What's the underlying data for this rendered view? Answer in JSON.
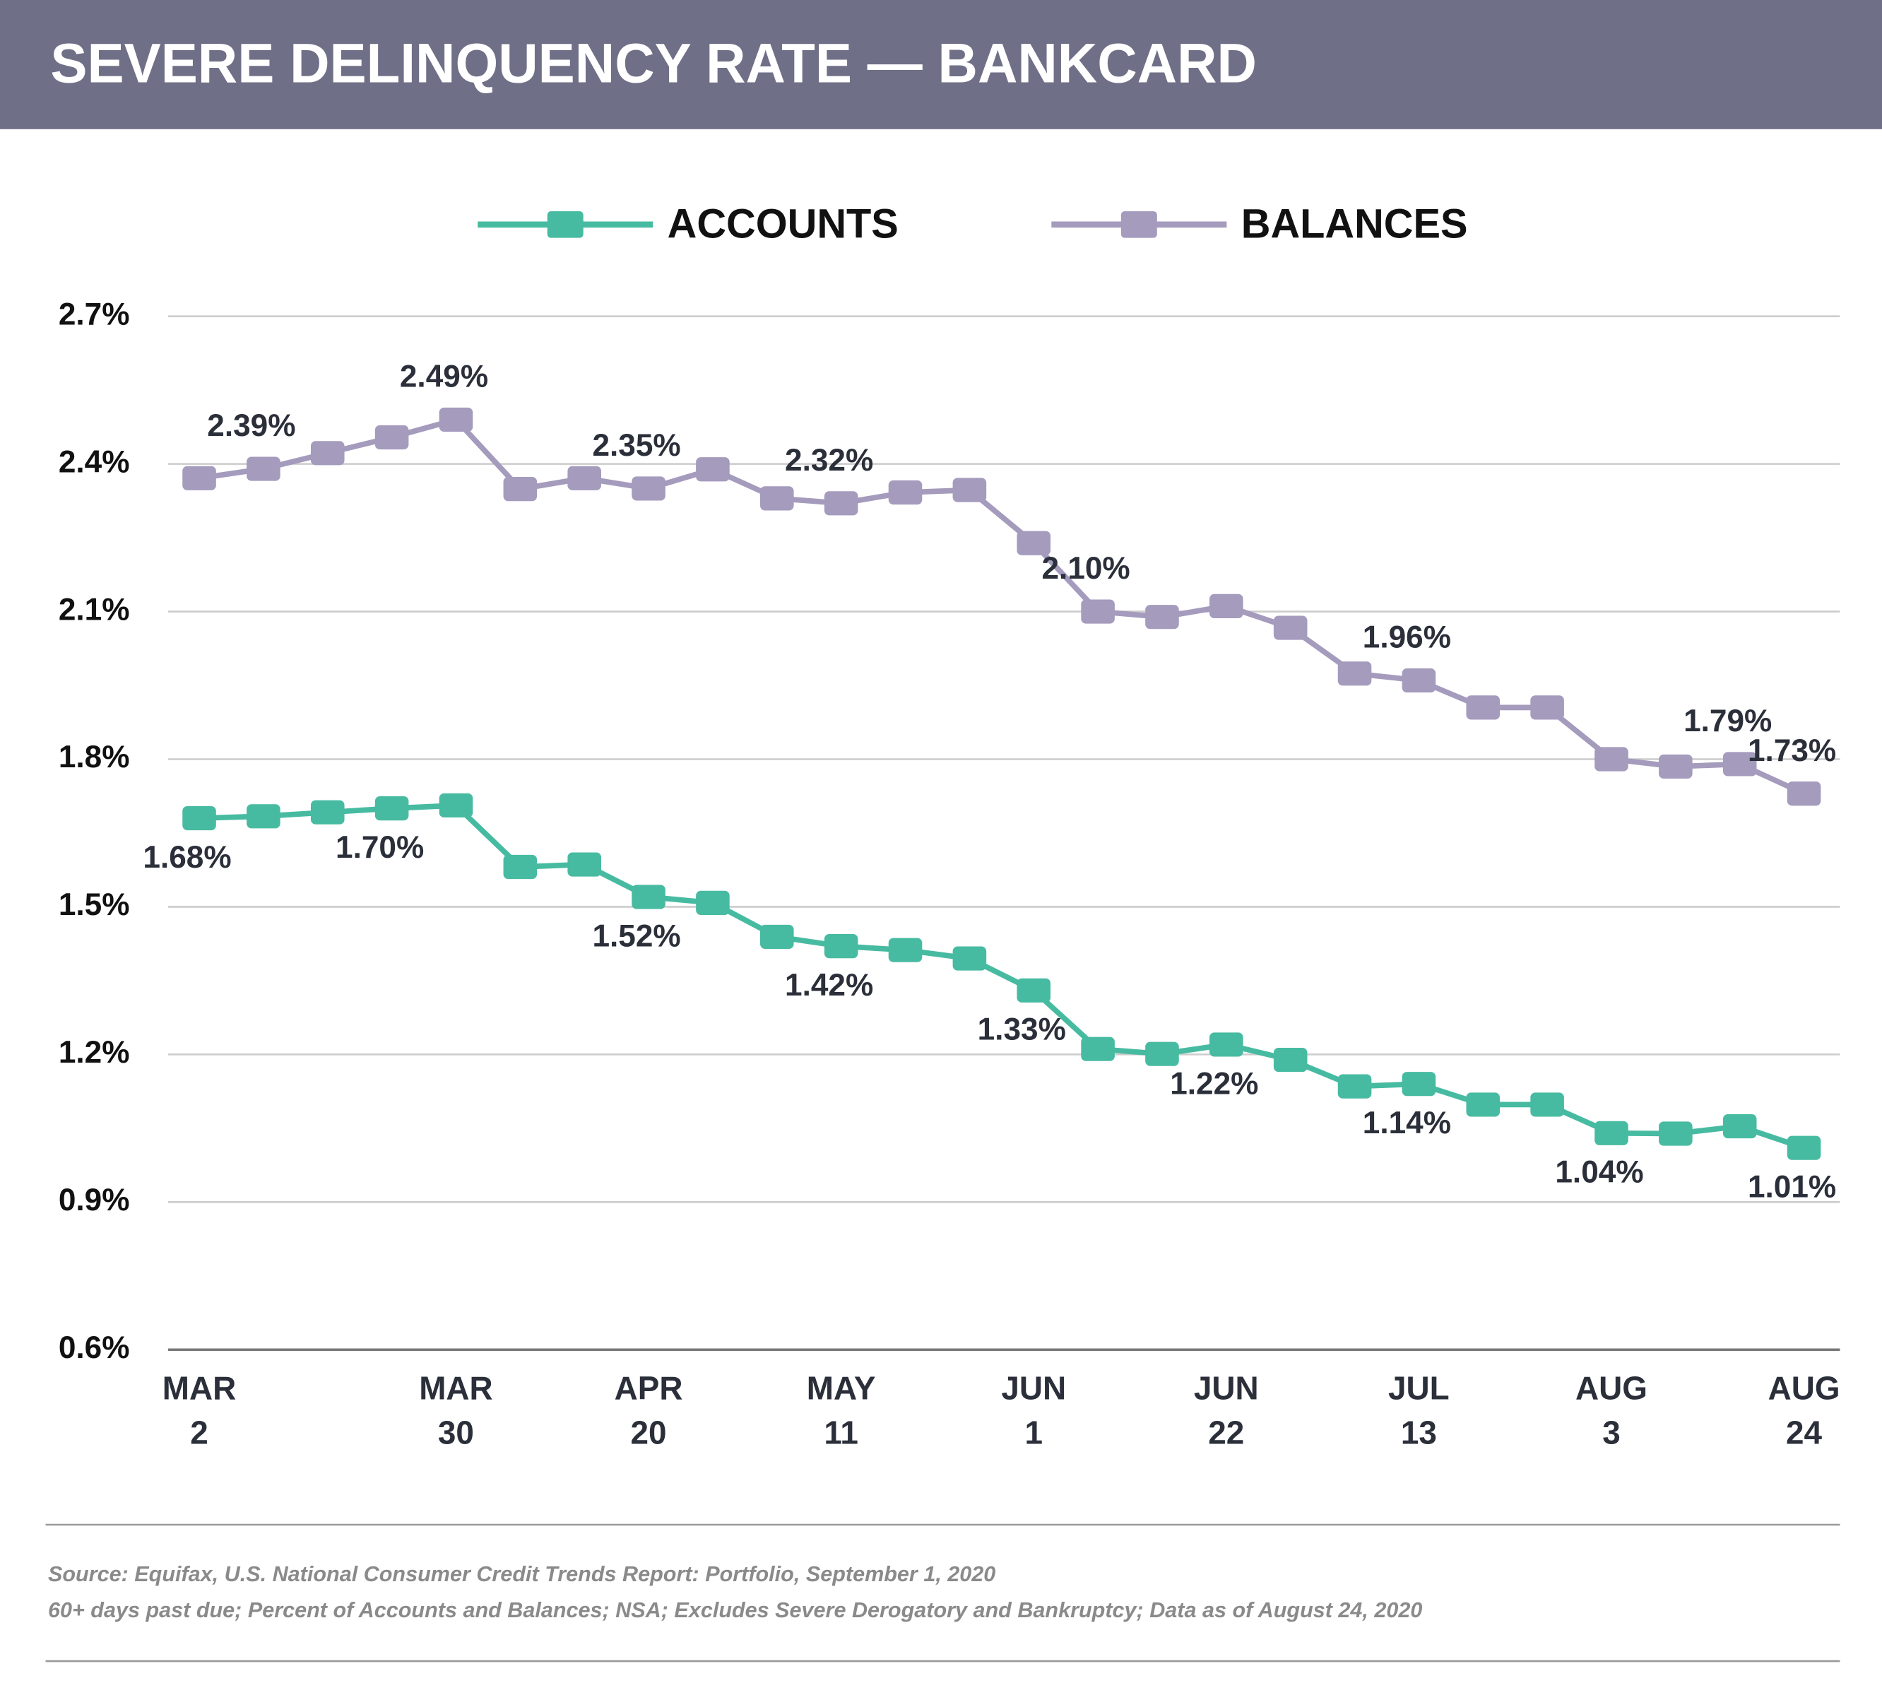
{
  "chart_data": {
    "type": "line",
    "title": "SEVERE DELINQUENCY RATE — BANKCARD",
    "categories": [
      "MAR 2",
      null,
      null,
      null,
      "MAR 30",
      null,
      null,
      "APR 20",
      null,
      null,
      "MAY 11",
      null,
      null,
      "JUN 1",
      null,
      null,
      "JUN 22",
      null,
      null,
      "JUL 13",
      null,
      null,
      "AUG 3",
      null,
      null,
      "AUG 24"
    ],
    "series": [
      {
        "name": "ACCOUNTS",
        "color": "#47bba1",
        "values": [
          1.68,
          1.684,
          1.692,
          1.7,
          1.706,
          1.581,
          1.586,
          1.52,
          1.508,
          1.439,
          1.42,
          1.412,
          1.395,
          1.33,
          1.211,
          1.201,
          1.22,
          1.189,
          1.135,
          1.14,
          1.098,
          1.098,
          1.04,
          1.039,
          1.054,
          1.01
        ],
        "value_labels": [
          "1.68%",
          null,
          null,
          "1.70%",
          null,
          null,
          null,
          "1.52%",
          null,
          null,
          "1.42%",
          null,
          null,
          "1.33%",
          null,
          null,
          "1.22%",
          null,
          null,
          "1.14%",
          null,
          null,
          "1.04%",
          null,
          null,
          "1.01%"
        ]
      },
      {
        "name": "BALANCES",
        "color": "#a49bbd",
        "values": [
          2.371,
          2.39,
          2.422,
          2.454,
          2.49,
          2.349,
          2.371,
          2.35,
          2.389,
          2.33,
          2.32,
          2.342,
          2.347,
          2.239,
          2.1,
          2.089,
          2.111,
          2.067,
          1.974,
          1.96,
          1.905,
          1.905,
          1.8,
          1.785,
          1.79,
          1.73
        ],
        "value_labels": [
          null,
          "2.39%",
          null,
          null,
          "2.49%",
          null,
          null,
          "2.35%",
          null,
          null,
          "2.32%",
          null,
          null,
          null,
          "2.10%",
          null,
          null,
          null,
          null,
          "1.96%",
          null,
          null,
          null,
          null,
          "1.79%",
          "1.73%"
        ]
      }
    ],
    "ylim": [
      0.6,
      2.7
    ],
    "yticks": [
      {
        "value": 0.6,
        "label": "0.6%"
      },
      {
        "value": 0.9,
        "label": "0.9%"
      },
      {
        "value": 1.2,
        "label": "1.2%"
      },
      {
        "value": 1.5,
        "label": "1.5%"
      },
      {
        "value": 1.8,
        "label": "1.8%"
      },
      {
        "value": 2.1,
        "label": "2.1%"
      },
      {
        "value": 2.4,
        "label": "2.4%"
      },
      {
        "value": 2.7,
        "label": "2.7%"
      }
    ],
    "grid": true,
    "source": "Source: Equifax, U.S. National Consumer Credit Trends Report: Portfolio, September 1, 2020",
    "note": "60+ days past due; Percent of Accounts and Balances; NSA; Excludes Severe Derogatory and Bankruptcy; Data as of August 24, 2020"
  }
}
